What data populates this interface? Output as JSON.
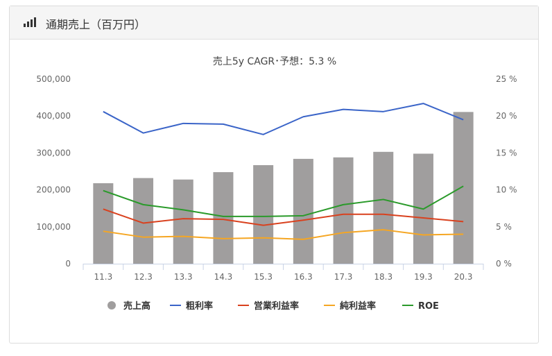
{
  "card": {
    "title": "通期売上（百万円）",
    "icon": "bar-chart-icon"
  },
  "chart_data": {
    "type": "bar+line",
    "title": "売上5y CAGR･予想：5.3 %",
    "categories": [
      "11.3",
      "12.3",
      "13.3",
      "14.3",
      "15.3",
      "16.3",
      "17.3",
      "18.3",
      "19.3",
      "20.3"
    ],
    "left_axis": {
      "ylim": [
        0,
        500000
      ],
      "ticks": [
        "0",
        "100,000",
        "200,000",
        "300,000",
        "400,000",
        "500,000"
      ]
    },
    "right_axis": {
      "ylim": [
        0,
        25
      ],
      "ticks": [
        "0 %",
        "5 %",
        "10 %",
        "15 %",
        "20 %",
        "25 %"
      ]
    },
    "series": [
      {
        "name": "売上高",
        "type": "bar",
        "axis": "left",
        "color": "#a09e9e",
        "values": [
          218000,
          232000,
          228000,
          248000,
          267000,
          284000,
          288000,
          303000,
          298000,
          411000
        ]
      },
      {
        "name": "粗利率",
        "type": "line",
        "axis": "right",
        "color": "#3a64c8",
        "values": [
          20.6,
          17.7,
          19.0,
          18.9,
          17.5,
          19.9,
          20.9,
          20.6,
          21.7,
          19.5
        ]
      },
      {
        "name": "営業利益率",
        "type": "line",
        "axis": "right",
        "color": "#d9411e",
        "values": [
          7.4,
          5.5,
          6.1,
          6.0,
          5.2,
          5.9,
          6.7,
          6.7,
          6.2,
          5.7
        ]
      },
      {
        "name": "純利益率",
        "type": "line",
        "axis": "right",
        "color": "#f5a623",
        "values": [
          4.4,
          3.6,
          3.7,
          3.4,
          3.5,
          3.3,
          4.2,
          4.6,
          3.9,
          4.0
        ]
      },
      {
        "name": "ROE",
        "type": "line",
        "axis": "right",
        "color": "#2a9a2a",
        "values": [
          9.9,
          8.0,
          7.3,
          6.4,
          6.4,
          6.5,
          8.0,
          8.7,
          7.4,
          10.5
        ]
      }
    ],
    "grid": true,
    "legend": "bottom"
  }
}
